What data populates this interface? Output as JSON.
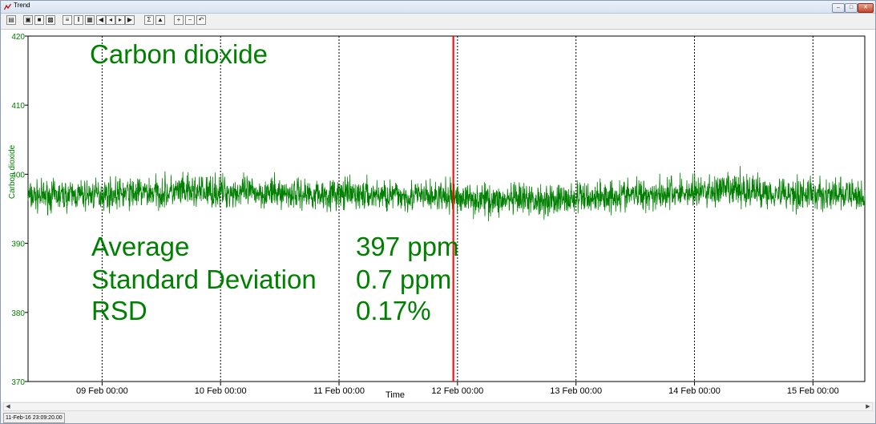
{
  "window": {
    "title": "Trend"
  },
  "toolbar": {
    "buttons": [
      "open-icon",
      "folder-icon",
      "save-icon",
      "print-icon",
      "list-icon",
      "columns-icon",
      "grid-icon",
      "first-icon",
      "prev-icon",
      "next-icon",
      "last-icon",
      "sum-icon",
      "chart-icon",
      "zoom-in-icon",
      "zoom-out-icon",
      "zoom-reset-icon"
    ]
  },
  "status": {
    "timestamp": "11-Feb-16 23:09:20.00"
  },
  "colors": {
    "series": "#008000",
    "cursor": "#ff0000",
    "grid": "#000000"
  },
  "stats": {
    "average_label": "Average",
    "average_value": "397 ppm",
    "sd_label": "Standard Deviation",
    "sd_value": "0.7 ppm",
    "rsd_label": "RSD",
    "rsd_value": "0.17%"
  },
  "chart_data": {
    "type": "line",
    "title": "Carbon dioxide",
    "xlabel": "Time",
    "ylabel": "Carbon dioxide",
    "ylim": [
      370,
      420
    ],
    "yticks": [
      370,
      380,
      390,
      400,
      410,
      420
    ],
    "xlim": [
      "2016-02-08 09:00",
      "2016-02-15 10:30"
    ],
    "xticks": [
      "09 Feb 00:00",
      "10 Feb 00:00",
      "11 Feb 00:00",
      "12 Feb 00:00",
      "13 Feb 00:00",
      "14 Feb 00:00",
      "15 Feb 00:00"
    ],
    "grid": "vertical dotted at each day",
    "cursor_time": "11-Feb-16 23:09:20",
    "series": [
      {
        "name": "Carbon dioxide",
        "x": [
          "2016-02-08 09:00",
          "2016-02-08 21:00",
          "2016-02-09 09:00",
          "2016-02-09 21:00",
          "2016-02-10 09:00",
          "2016-02-10 21:00",
          "2016-02-11 09:00",
          "2016-02-11 21:00",
          "2016-02-12 09:00",
          "2016-02-12 21:00",
          "2016-02-13 09:00",
          "2016-02-13 21:00",
          "2016-02-14 09:00",
          "2016-02-14 21:00",
          "2016-02-15 09:00"
        ],
        "mean": [
          396.8,
          397.0,
          397.3,
          397.4,
          397.3,
          397.1,
          397.0,
          396.8,
          396.2,
          396.3,
          396.9,
          397.3,
          397.6,
          397.1,
          396.9
        ],
        "min": [
          393.5,
          393.8,
          394.0,
          394.1,
          394.2,
          393.8,
          393.6,
          393.2,
          392.8,
          393.0,
          393.6,
          394.0,
          394.3,
          393.8,
          393.6
        ],
        "max": [
          400.0,
          400.2,
          400.8,
          401.2,
          400.6,
          400.5,
          400.3,
          400.0,
          399.6,
          399.8,
          400.6,
          401.0,
          401.8,
          400.8,
          400.4
        ]
      }
    ]
  }
}
